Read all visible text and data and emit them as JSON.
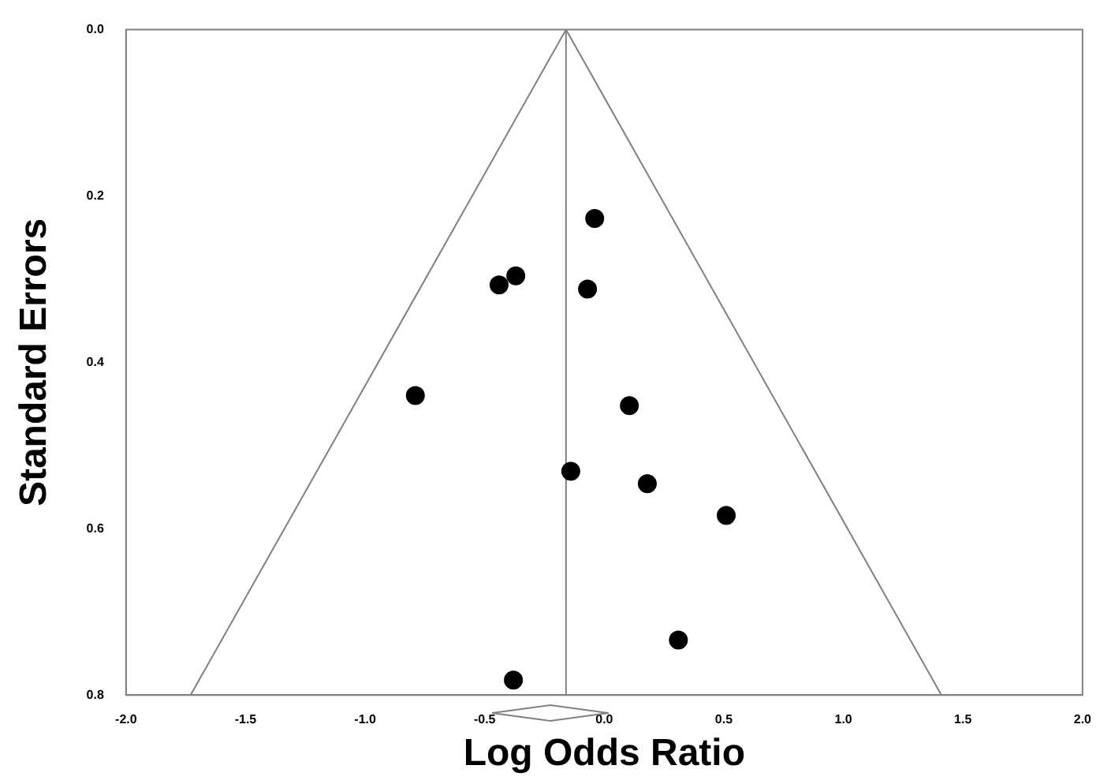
{
  "chart_data": {
    "type": "scatter",
    "xlabel": "Log Odds Ratio",
    "ylabel": "Standard Errors",
    "xlim": [
      -2,
      2
    ],
    "xticks": [
      {
        "value": -2,
        "label": "-2.0"
      },
      {
        "value": -1.5,
        "label": "-1.5"
      },
      {
        "value": -1,
        "label": "-1.0"
      },
      {
        "value": -0.5,
        "label": "-0.5"
      },
      {
        "value": 0,
        "label": "0.0"
      },
      {
        "value": 0.5,
        "label": "0.5"
      },
      {
        "value": 1,
        "label": "1.0"
      },
      {
        "value": 1.5,
        "label": "1.5"
      },
      {
        "value": 2,
        "label": "2.0"
      }
    ],
    "ylim": [
      0.8,
      0
    ],
    "yticks": [
      {
        "value": 0,
        "label": "0.0"
      },
      {
        "value": 0.2,
        "label": "0.2"
      },
      {
        "value": 0.4,
        "label": "0.4"
      },
      {
        "value": 0.6,
        "label": "0.6"
      },
      {
        "value": 0.8,
        "label": "0.8"
      }
    ],
    "grid": false,
    "legend": false,
    "marker": "circle",
    "series": [
      {
        "type": "line",
        "marker": "none",
        "color": "#808080",
        "x": [
          -1.73,
          -0.16
        ],
        "values": [
          0.8,
          0
        ]
      },
      {
        "type": "line",
        "marker": "none",
        "color": "#808080",
        "x": [
          -0.16,
          1.41
        ],
        "values": [
          0,
          0.8
        ]
      },
      {
        "type": "line",
        "marker": "none",
        "color": "#808080",
        "x": [
          -0.16,
          -0.16
        ],
        "values": [
          0,
          0.8
        ]
      },
      {
        "type": "scatter",
        "color": "#000000",
        "x": [
          -0.04,
          -0.44,
          -0.37,
          -0.07,
          -0.79,
          0.105,
          -0.14,
          0.18,
          0.51,
          0.31,
          -0.38
        ],
        "values": [
          0.227,
          0.307,
          0.296,
          0.312,
          0.44,
          0.452,
          0.531,
          0.546,
          0.584,
          0.734,
          0.782
        ]
      }
    ]
  }
}
